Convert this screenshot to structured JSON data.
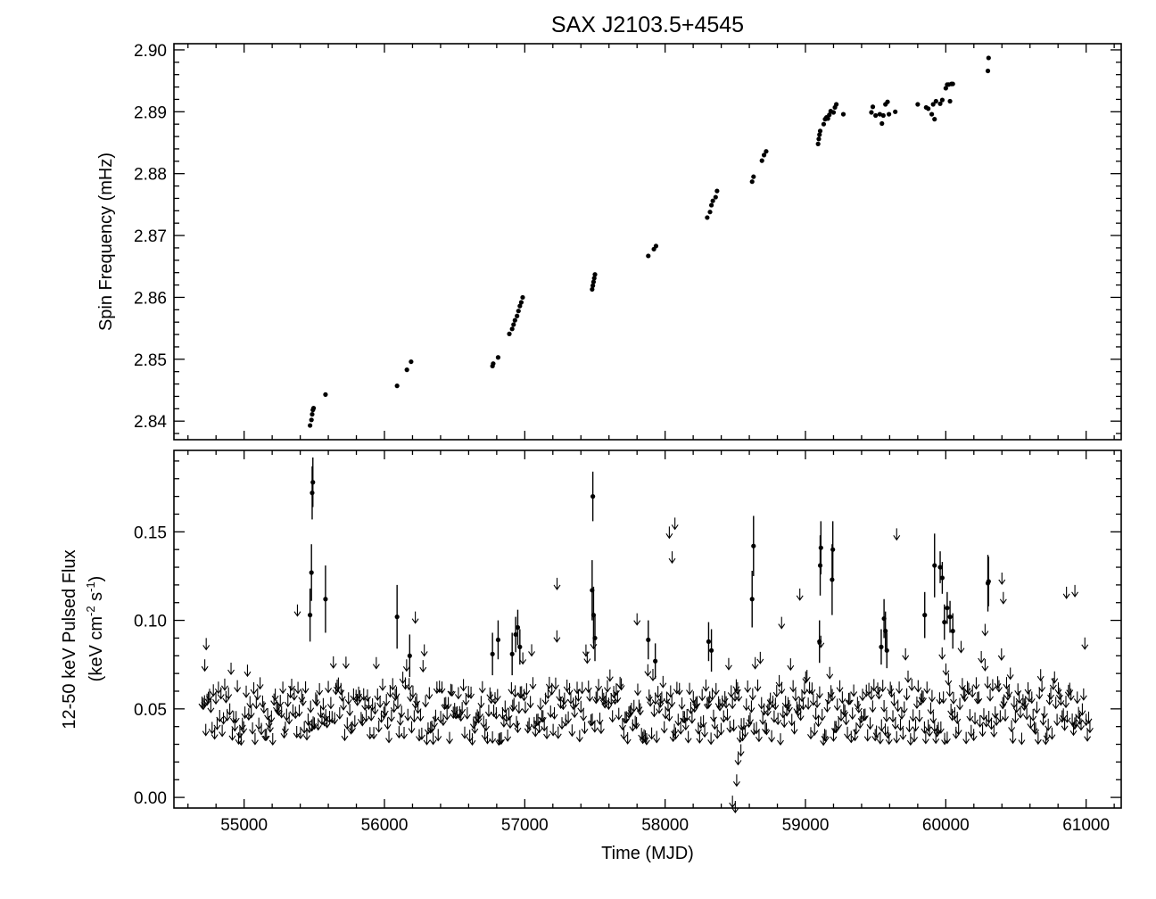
{
  "chart_data": [
    {
      "type": "scatter",
      "title": "SAX J2103.5+4545",
      "xlabel": "",
      "ylabel": "Spin Frequency (mHz)",
      "xlim": [
        54500,
        61250
      ],
      "ylim": [
        2.837,
        2.901
      ],
      "x_ticks": [
        55000,
        56000,
        57000,
        58000,
        59000,
        60000,
        61000
      ],
      "y_ticks": [
        "2.84",
        "2.85",
        "2.86",
        "2.87",
        "2.88",
        "2.89",
        "2.90"
      ],
      "y_tick_values": [
        2.84,
        2.85,
        2.86,
        2.87,
        2.88,
        2.89,
        2.9
      ],
      "points": [
        [
          55470,
          2.8393
        ],
        [
          55480,
          2.8402
        ],
        [
          55485,
          2.8411
        ],
        [
          55490,
          2.8418
        ],
        [
          55495,
          2.8421
        ],
        [
          55580,
          2.8443
        ],
        [
          56090,
          2.8457
        ],
        [
          56160,
          2.8483
        ],
        [
          56190,
          2.8496
        ],
        [
          56770,
          2.8489
        ],
        [
          56775,
          2.8493
        ],
        [
          56810,
          2.8503
        ],
        [
          56890,
          2.8541
        ],
        [
          56910,
          2.8549
        ],
        [
          56920,
          2.8556
        ],
        [
          56930,
          2.8563
        ],
        [
          56945,
          2.857
        ],
        [
          56955,
          2.8578
        ],
        [
          56965,
          2.8586
        ],
        [
          56975,
          2.8592
        ],
        [
          56985,
          2.86
        ],
        [
          57480,
          2.8613
        ],
        [
          57485,
          2.8619
        ],
        [
          57490,
          2.8625
        ],
        [
          57495,
          2.8631
        ],
        [
          57500,
          2.8637
        ],
        [
          57880,
          2.8667
        ],
        [
          57920,
          2.8678
        ],
        [
          57935,
          2.8683
        ],
        [
          58300,
          2.8729
        ],
        [
          58320,
          2.8738
        ],
        [
          58330,
          2.8749
        ],
        [
          58340,
          2.8756
        ],
        [
          58360,
          2.8762
        ],
        [
          58370,
          2.8772
        ],
        [
          58620,
          2.8787
        ],
        [
          58630,
          2.8795
        ],
        [
          58690,
          2.8821
        ],
        [
          58705,
          2.883
        ],
        [
          58720,
          2.8836
        ],
        [
          59090,
          2.8848
        ],
        [
          59095,
          2.8856
        ],
        [
          59100,
          2.8863
        ],
        [
          59105,
          2.8869
        ],
        [
          59130,
          2.888
        ],
        [
          59140,
          2.8888
        ],
        [
          59150,
          2.8891
        ],
        [
          59160,
          2.8889
        ],
        [
          59170,
          2.8895
        ],
        [
          59180,
          2.8901
        ],
        [
          59200,
          2.8899
        ],
        [
          59210,
          2.8907
        ],
        [
          59220,
          2.8912
        ],
        [
          59270,
          2.8896
        ],
        [
          59470,
          2.8899
        ],
        [
          59480,
          2.8908
        ],
        [
          59500,
          2.8894
        ],
        [
          59530,
          2.8896
        ],
        [
          59545,
          2.8881
        ],
        [
          59555,
          2.8894
        ],
        [
          59570,
          2.8912
        ],
        [
          59585,
          2.8916
        ],
        [
          59595,
          2.8896
        ],
        [
          59640,
          2.89
        ],
        [
          59800,
          2.8912
        ],
        [
          59860,
          2.8907
        ],
        [
          59875,
          2.8905
        ],
        [
          59900,
          2.8896
        ],
        [
          59910,
          2.8912
        ],
        [
          59920,
          2.8888
        ],
        [
          59930,
          2.8917
        ],
        [
          59960,
          2.8913
        ],
        [
          59975,
          2.8919
        ],
        [
          60000,
          2.8938
        ],
        [
          60010,
          2.8944
        ],
        [
          60020,
          2.8944
        ],
        [
          60030,
          2.8917
        ],
        [
          60040,
          2.8945
        ],
        [
          60050,
          2.8945
        ],
        [
          60300,
          2.8966
        ],
        [
          60305,
          2.8987
        ]
      ]
    },
    {
      "type": "scatter",
      "title": "",
      "xlabel": "Time (MJD)",
      "ylabel": "12-50 keV Pulsed Flux",
      "ylabel_units": "(keV cm",
      "ylabel_exp1": "-2",
      "ylabel_mid": " s",
      "ylabel_exp2": "-1",
      "ylabel_close": ")",
      "xlim": [
        54500,
        61250
      ],
      "ylim": [
        -0.006,
        0.196
      ],
      "x_ticks": [
        55000,
        56000,
        57000,
        58000,
        59000,
        60000,
        61000
      ],
      "y_ticks": [
        "0.00",
        "0.05",
        "0.10",
        "0.15"
      ],
      "y_tick_values": [
        0.0,
        0.05,
        0.1,
        0.15
      ],
      "detections": [
        [
          55470,
          0.103,
          0.015
        ],
        [
          55480,
          0.127,
          0.016
        ],
        [
          55485,
          0.172,
          0.015
        ],
        [
          55490,
          0.178,
          0.014
        ],
        [
          55580,
          0.112,
          0.019
        ],
        [
          56090,
          0.102,
          0.018
        ],
        [
          56180,
          0.08,
          0.012
        ],
        [
          56770,
          0.081,
          0.012
        ],
        [
          56810,
          0.089,
          0.011
        ],
        [
          56910,
          0.081,
          0.012
        ],
        [
          56935,
          0.092,
          0.01
        ],
        [
          56950,
          0.096,
          0.01
        ],
        [
          56965,
          0.085,
          0.01
        ],
        [
          57480,
          0.117,
          0.017
        ],
        [
          57485,
          0.17,
          0.014
        ],
        [
          57490,
          0.103,
          0.016
        ],
        [
          57500,
          0.09,
          0.013
        ],
        [
          57880,
          0.089,
          0.011
        ],
        [
          57930,
          0.077,
          0.01
        ],
        [
          58310,
          0.088,
          0.011
        ],
        [
          58330,
          0.083,
          0.012
        ],
        [
          58620,
          0.112,
          0.016
        ],
        [
          58630,
          0.142,
          0.017
        ],
        [
          59100,
          0.088,
          0.012
        ],
        [
          59105,
          0.131,
          0.017
        ],
        [
          59110,
          0.141,
          0.015
        ],
        [
          59190,
          0.123,
          0.02
        ],
        [
          59195,
          0.14,
          0.016
        ],
        [
          59540,
          0.085,
          0.01
        ],
        [
          59560,
          0.101,
          0.011
        ],
        [
          59570,
          0.094,
          0.011
        ],
        [
          59580,
          0.083,
          0.01
        ],
        [
          59850,
          0.103,
          0.013
        ],
        [
          59920,
          0.131,
          0.018
        ],
        [
          59960,
          0.13,
          0.009
        ],
        [
          59975,
          0.124,
          0.009
        ],
        [
          59990,
          0.099,
          0.01
        ],
        [
          60010,
          0.107,
          0.009
        ],
        [
          60030,
          0.102,
          0.009
        ],
        [
          60050,
          0.094,
          0.01
        ],
        [
          60300,
          0.121,
          0.016
        ],
        [
          60305,
          0.122,
          0.014
        ]
      ],
      "upper_limits": {
        "x_start": 54700,
        "x_end": 61030,
        "baseline": 0.052,
        "sparse_points": [
          [
            54720,
            0.078
          ],
          [
            54730,
            0.09
          ],
          [
            55380,
            0.109
          ],
          [
            56220,
            0.105
          ],
          [
            57230,
            0.124
          ],
          [
            57800,
            0.104
          ],
          [
            58030,
            0.153
          ],
          [
            58050,
            0.139
          ],
          [
            58070,
            0.158
          ],
          [
            58830,
            0.102
          ],
          [
            58960,
            0.118
          ],
          [
            59650,
            0.152
          ],
          [
            60280,
            0.098
          ],
          [
            60400,
            0.127
          ],
          [
            60410,
            0.116
          ],
          [
            60860,
            0.119
          ],
          [
            60920,
            0.12
          ],
          [
            58480,
            0.001
          ],
          [
            58500,
            -0.002
          ],
          [
            58510,
            0.013
          ],
          [
            58520,
            0.025
          ],
          [
            58540,
            0.03
          ]
        ]
      }
    }
  ]
}
